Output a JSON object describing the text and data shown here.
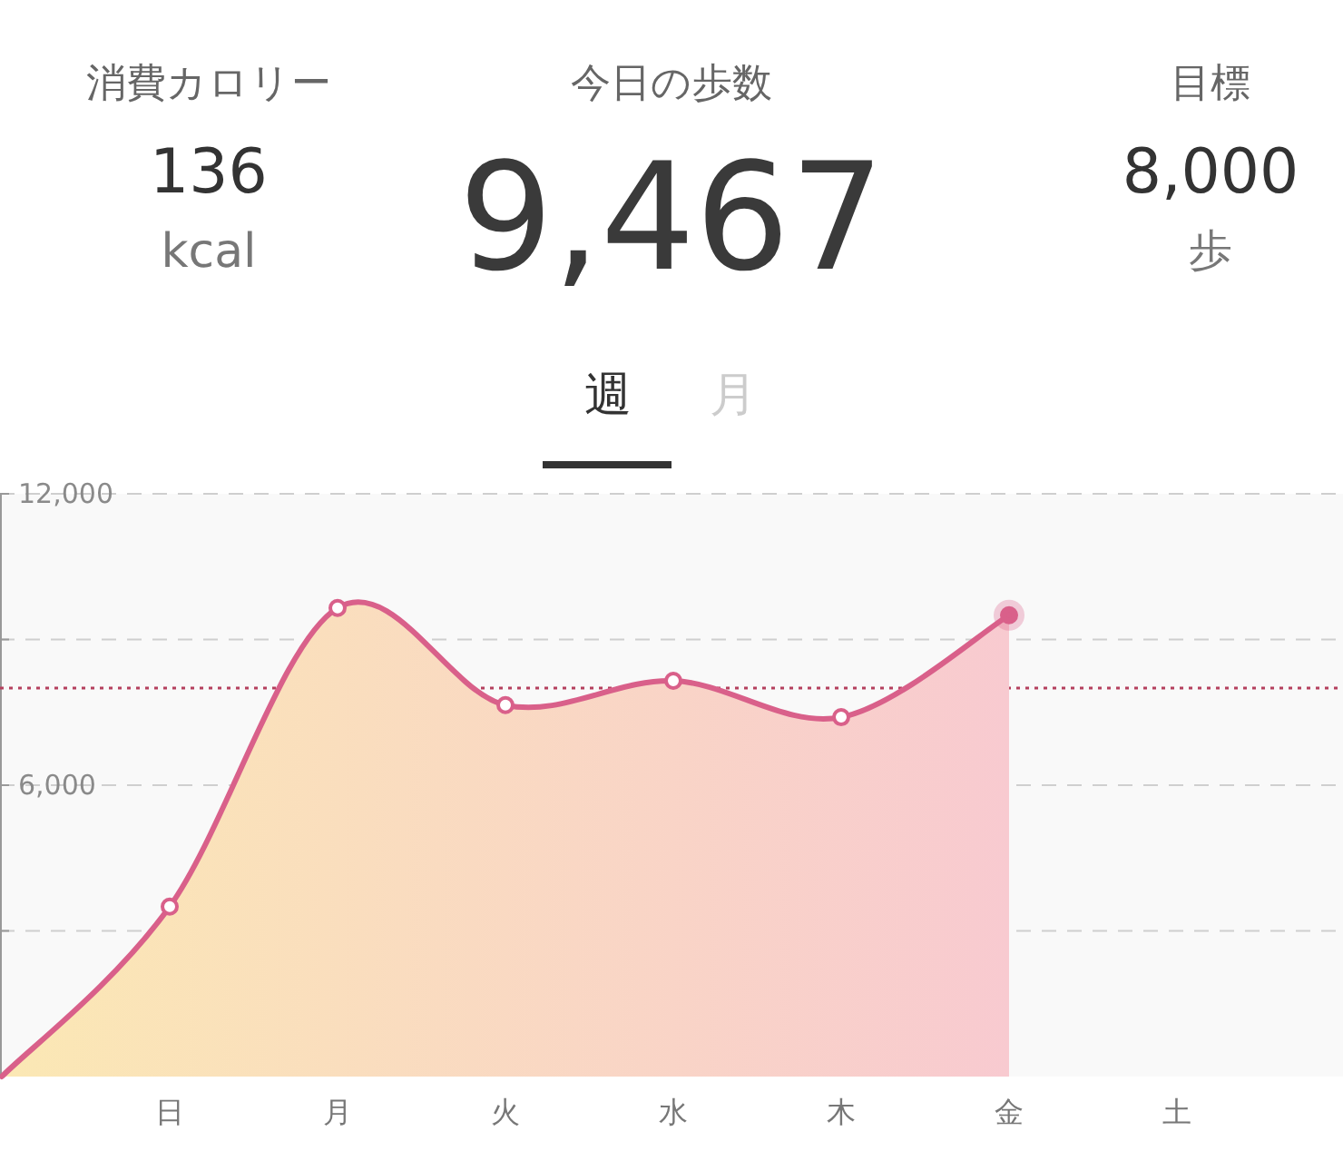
{
  "chart_data": [
    {
      "type": "other",
      "annotations": [
        "消費カロリー",
        "136",
        "kcal",
        "今日の歩数",
        "9,467",
        "目標",
        "8,000",
        "歩",
        "週",
        "月"
      ]
    },
    {
      "type": "area",
      "categories": [
        null,
        "日",
        "月",
        "火",
        "水",
        "木",
        "金",
        "土"
      ],
      "series": [
        {
          "color": "#d9608a",
          "values": [
            0,
            3500,
            9650,
            7650,
            8150,
            7400,
            9500,
            null
          ]
        }
      ],
      "ylim": [
        0,
        12000
      ],
      "yticks": [
        {
          "value": 3000,
          "label": null
        },
        {
          "value": 6000,
          "label": "6,000"
        },
        {
          "value": 9000,
          "label": null
        },
        {
          "value": 12000,
          "label": "12,000"
        }
      ],
      "grid": "y",
      "marker": "circle",
      "line_style": "solid",
      "ref_lines": [
        {
          "axis": "y",
          "value": 8000,
          "label": null,
          "color": "#b5405e",
          "line_style": "dotted"
        }
      ]
    }
  ]
}
